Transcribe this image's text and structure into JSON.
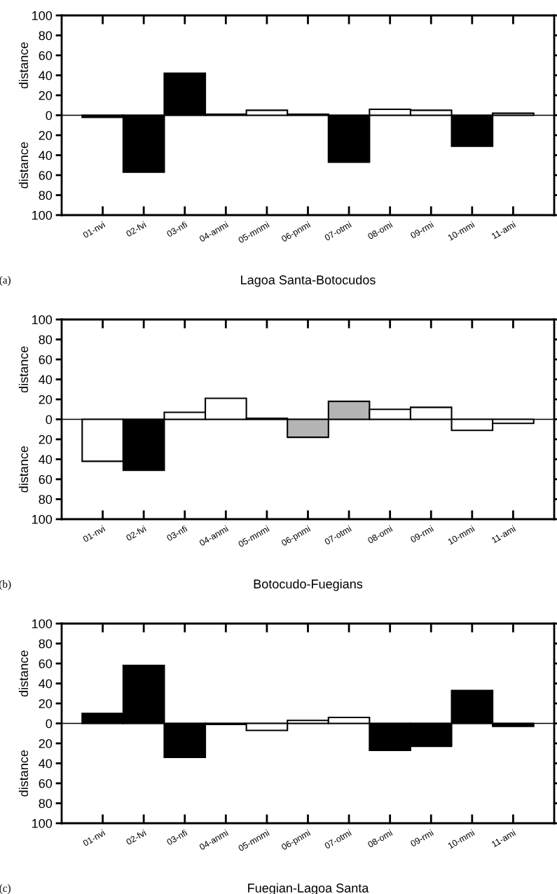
{
  "chart_data": [
    {
      "type": "bar",
      "xlabel": "Lagoa Santa-Botocudos",
      "ylabel": "distance",
      "annotations": [
        "(a)"
      ],
      "categories": [
        "01-nvi",
        "02-fvi",
        "03-nfi",
        "04-anmi",
        "05-mnmi",
        "06-pnmi",
        "07-otmi",
        "08-omi",
        "09-rmi",
        "10-mmi",
        "11-ami"
      ],
      "values": [
        -2,
        -57,
        42,
        1,
        5,
        1,
        -47,
        6,
        5,
        -31,
        2
      ],
      "colors": [
        "#000000",
        "#000000",
        "#000000",
        "#ffffff",
        "#ffffff",
        "#ffffff",
        "#000000",
        "#ffffff",
        "#ffffff",
        "#000000",
        "#ffffff"
      ],
      "ylim": [
        -100,
        100
      ],
      "yticks": [
        {
          "value": -100,
          "label": "100"
        },
        {
          "value": -80,
          "label": "80"
        },
        {
          "value": -60,
          "label": "60"
        },
        {
          "value": -40,
          "label": "40"
        },
        {
          "value": -20,
          "label": "20"
        },
        0,
        20,
        40,
        60,
        80,
        100
      ],
      "ref_lines": [
        {
          "axis": "y",
          "value": 0,
          "color": "#000000"
        }
      ],
      "grid": false,
      "legend": false
    },
    {
      "type": "bar",
      "xlabel": "Botocudo-Fuegians",
      "ylabel": "distance",
      "annotations": [
        "(b)"
      ],
      "categories": [
        "01-nvi",
        "02-fvi",
        "03-nfi",
        "04-anmi",
        "05-mnmi",
        "06-pnmi",
        "07-otmi",
        "08-omi",
        "09-rmi",
        "10-mmi",
        "11-ami"
      ],
      "values": [
        -42,
        -51,
        7,
        21,
        1,
        -18,
        18,
        10,
        12,
        -11,
        -4
      ],
      "colors": [
        "#ffffff",
        "#000000",
        "#ffffff",
        "#ffffff",
        "#ffffff",
        "#b4b4b4",
        "#b4b4b4",
        "#ffffff",
        "#ffffff",
        "#ffffff",
        "#ffffff"
      ],
      "ylim": [
        -100,
        100
      ],
      "yticks": [
        {
          "value": -100,
          "label": "100"
        },
        {
          "value": -80,
          "label": "80"
        },
        {
          "value": -60,
          "label": "60"
        },
        {
          "value": -40,
          "label": "40"
        },
        {
          "value": -20,
          "label": "20"
        },
        0,
        20,
        40,
        60,
        80,
        100
      ],
      "ref_lines": [
        {
          "axis": "y",
          "value": 0,
          "color": "#000000"
        }
      ],
      "grid": false,
      "legend": false
    },
    {
      "type": "bar",
      "xlabel": "Fuegian-Lagoa Santa",
      "ylabel": "distance",
      "annotations": [
        "(c)"
      ],
      "categories": [
        "01-nvi",
        "02-fvi",
        "03-nfi",
        "04-anmi",
        "05-mnmi",
        "06-pnmi",
        "07-otmi",
        "08-omi",
        "09-rmi",
        "10-mmi",
        "11-ami"
      ],
      "values": [
        10,
        58,
        -34,
        -1,
        -7,
        3,
        6,
        -27,
        -23,
        33,
        -3
      ],
      "colors": [
        "#000000",
        "#000000",
        "#000000",
        "#000000",
        "#ffffff",
        "#ffffff",
        "#ffffff",
        "#000000",
        "#000000",
        "#000000",
        "#000000"
      ],
      "ylim": [
        -100,
        100
      ],
      "yticks": [
        {
          "value": -100,
          "label": "100"
        },
        {
          "value": -80,
          "label": "80"
        },
        {
          "value": -60,
          "label": "60"
        },
        {
          "value": -40,
          "label": "40"
        },
        {
          "value": -20,
          "label": "20"
        },
        0,
        20,
        40,
        60,
        80,
        100
      ],
      "ref_lines": [
        {
          "axis": "y",
          "value": 0,
          "color": "#000000"
        }
      ],
      "grid": false,
      "legend": false
    }
  ]
}
